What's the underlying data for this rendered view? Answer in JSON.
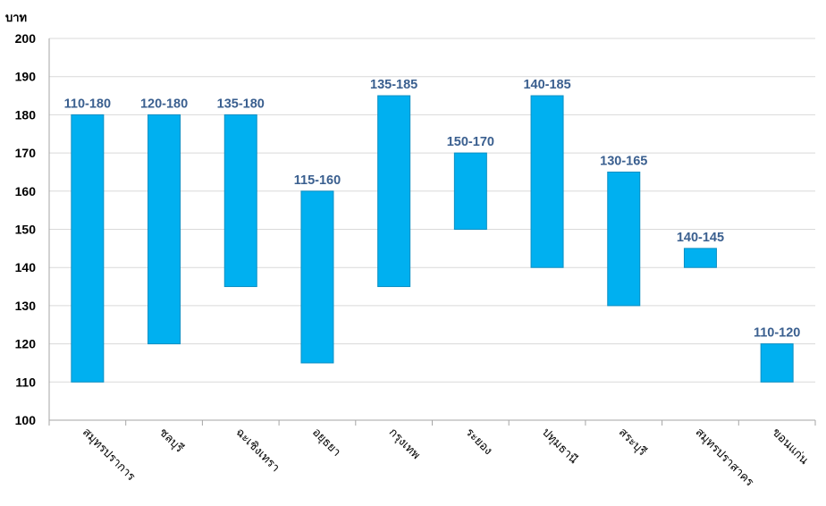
{
  "chart_data": {
    "type": "bar",
    "ylabel": "บาท",
    "ylim": [
      100,
      200
    ],
    "yticks": [
      100,
      110,
      120,
      130,
      140,
      150,
      160,
      170,
      180,
      190,
      200
    ],
    "grid": true,
    "categories": [
      "สมุทรปราการ",
      "ชลบุรี",
      "ฉะเชิงเทรา",
      "อยุธยา",
      "กรุงเทพ",
      "ระยอง",
      "ปทุมธานี",
      "สระบุรี",
      "สมุทรปราสาคร",
      "ขอนแก่น"
    ],
    "low": [
      110,
      120,
      135,
      115,
      135,
      150,
      140,
      130,
      140,
      110
    ],
    "high": [
      180,
      180,
      180,
      160,
      185,
      170,
      185,
      165,
      145,
      120
    ],
    "labels": [
      "110-180",
      "120-180",
      "135-180",
      "115-160",
      "135-185",
      "150-170",
      "140-185",
      "130-165",
      "140-145",
      "110-120"
    ],
    "colors": {
      "bar": "#00B0F0",
      "bar_edge": "#0A8FC4",
      "label": "#3A5F8F",
      "grid": "#D9D9D9",
      "axis": "#A6A6A6"
    }
  }
}
